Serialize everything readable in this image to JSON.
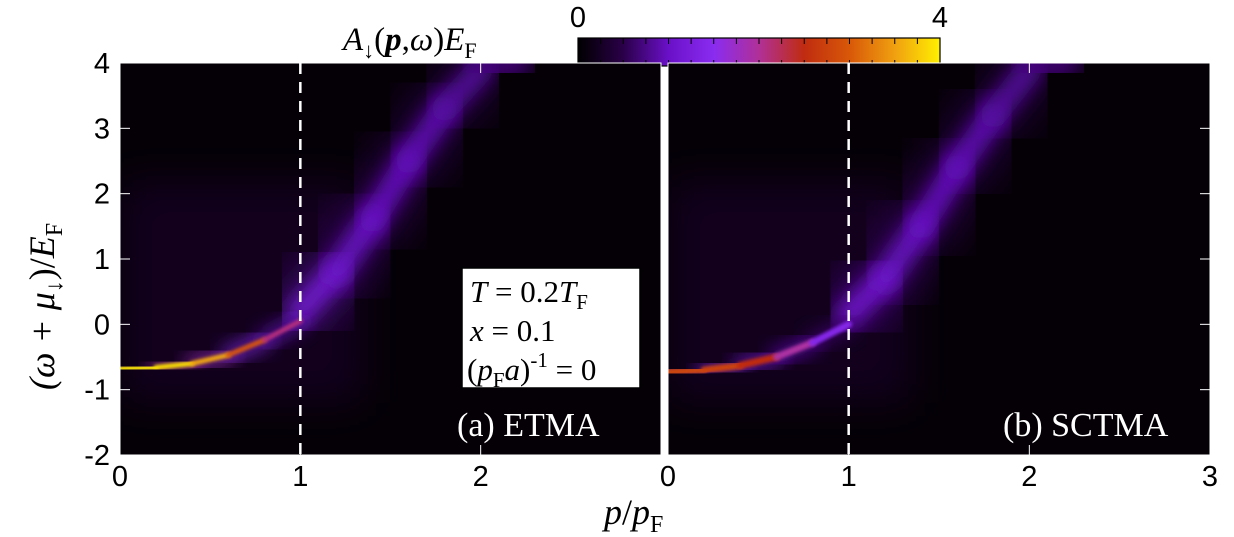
{
  "chart_data": {
    "type": "heatmap",
    "colorbar": {
      "label": "A↓(p,ω)EF",
      "range": [
        0,
        4
      ],
      "tick_labels": [
        "0",
        "4"
      ],
      "colors": [
        "#000000",
        "#2a0048",
        "#6a10c8",
        "#8a2cf0",
        "#b03098",
        "#c02c10",
        "#d85808",
        "#f0a010",
        "#fff000"
      ],
      "minor_ticks": [
        0.25,
        0.5,
        0.75,
        1,
        1.25,
        1.5,
        1.75,
        2,
        2.25,
        2.5,
        2.75,
        3,
        3.25,
        3.5,
        3.75
      ]
    },
    "ylabel": "(ω + μ↓)/EF",
    "xlabel": "p/pF",
    "ylim": [
      -2,
      4
    ],
    "y_ticks": [
      "-2",
      "-1",
      "0",
      "1",
      "2",
      "3",
      "4"
    ],
    "fermi_momentum_line_x": 1,
    "params_box": [
      "T = 0.2TF",
      "x = 0.1",
      "(pFa)-1 = 0"
    ],
    "panels": [
      {
        "label": "(a) ETMA",
        "xlim": [
          0,
          3
        ],
        "x_ticks": [
          "0",
          "1",
          "2"
        ],
        "quasiparticle_branch": {
          "x": [
            0,
            0.2,
            0.4,
            0.6,
            0.8,
            1.0
          ],
          "y": [
            -0.68,
            -0.66,
            -0.6,
            -0.47,
            -0.24,
            0.05
          ],
          "peak_intensity": [
            4.0,
            4.0,
            3.8,
            3.3,
            2.6,
            1.6
          ]
        },
        "broad_band": {
          "x": [
            1.0,
            1.2,
            1.4,
            1.6,
            1.8,
            2.0,
            2.2
          ],
          "y": [
            0.2,
            0.8,
            1.6,
            2.5,
            3.3,
            3.9,
            4.0
          ],
          "peak_intensity": [
            1.3,
            1.1,
            1.0,
            1.0,
            0.9,
            0.8,
            0.6
          ]
        }
      },
      {
        "label": "(b) SCTMA",
        "xlim": [
          0,
          3
        ],
        "x_ticks": [
          "0",
          "1",
          "2",
          "3"
        ],
        "quasiparticle_branch": {
          "x": [
            0,
            0.2,
            0.4,
            0.6,
            0.8,
            1.0
          ],
          "y": [
            -0.73,
            -0.7,
            -0.63,
            -0.5,
            -0.28,
            0.0
          ],
          "peak_intensity": [
            2.8,
            2.8,
            2.7,
            2.3,
            1.6,
            1.2
          ]
        },
        "broad_band": {
          "x": [
            1.0,
            1.2,
            1.4,
            1.6,
            1.8,
            2.0,
            2.2
          ],
          "y": [
            0.15,
            0.7,
            1.5,
            2.4,
            3.2,
            3.9,
            4.0
          ],
          "peak_intensity": [
            1.2,
            1.1,
            1.0,
            1.0,
            0.9,
            0.8,
            0.6
          ]
        }
      }
    ]
  }
}
